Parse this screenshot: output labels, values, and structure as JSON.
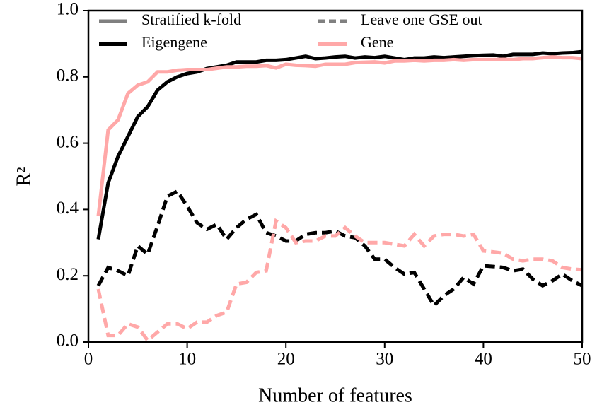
{
  "chart_data": {
    "type": "line",
    "xlabel": "Number of features",
    "ylabel": "R²",
    "x": [
      1,
      2,
      3,
      4,
      5,
      6,
      7,
      8,
      9,
      10,
      11,
      12,
      13,
      14,
      15,
      16,
      17,
      18,
      19,
      20,
      21,
      22,
      23,
      24,
      25,
      26,
      27,
      28,
      29,
      30,
      31,
      32,
      33,
      34,
      35,
      36,
      37,
      38,
      39,
      40,
      41,
      42,
      43,
      44,
      45,
      46,
      47,
      48,
      49,
      50
    ],
    "xlim": [
      0,
      50
    ],
    "xticks": [
      0,
      10,
      20,
      30,
      40,
      50
    ],
    "ylim": [
      0,
      1
    ],
    "yticks": [
      {
        "value": 0,
        "label": "0.0"
      },
      0.2,
      0.4,
      0.6,
      0.8,
      {
        "value": 1,
        "label": "1.0"
      }
    ],
    "grid": false,
    "legend": {
      "position": "top",
      "methods": [
        {
          "label": "Stratified k-fold",
          "linestyle": "solid",
          "color": "#808080"
        },
        {
          "label": "Leave one GSE out",
          "linestyle": "dashed",
          "color": "#808080"
        }
      ]
    },
    "series": [
      {
        "name": "Eigengene",
        "color": "#000000",
        "linestyle": "solid",
        "values": [
          0.31,
          0.48,
          0.56,
          0.62,
          0.68,
          0.71,
          0.76,
          0.785,
          0.8,
          0.81,
          0.815,
          0.825,
          0.83,
          0.835,
          0.845,
          0.845,
          0.845,
          0.85,
          0.85,
          0.852,
          0.857,
          0.862,
          0.855,
          0.857,
          0.86,
          0.862,
          0.857,
          0.86,
          0.858,
          0.862,
          0.857,
          0.852,
          0.857,
          0.857,
          0.86,
          0.858,
          0.86,
          0.862,
          0.864,
          0.865,
          0.866,
          0.862,
          0.868,
          0.868,
          0.868,
          0.872,
          0.87,
          0.872,
          0.873,
          0.876
        ]
      },
      {
        "name": "Gene",
        "color": "#ffa8a8",
        "linestyle": "solid",
        "values": [
          0.38,
          0.64,
          0.67,
          0.75,
          0.775,
          0.785,
          0.815,
          0.815,
          0.82,
          0.822,
          0.822,
          0.822,
          0.826,
          0.83,
          0.83,
          0.832,
          0.832,
          0.834,
          0.827,
          0.838,
          0.835,
          0.834,
          0.832,
          0.838,
          0.838,
          0.838,
          0.843,
          0.844,
          0.845,
          0.842,
          0.848,
          0.848,
          0.85,
          0.848,
          0.85,
          0.85,
          0.852,
          0.85,
          0.852,
          0.852,
          0.852,
          0.853,
          0.852,
          0.855,
          0.855,
          0.858,
          0.86,
          0.858,
          0.858,
          0.855
        ]
      },
      {
        "name": "Eigengene",
        "color": "#000000",
        "linestyle": "dashed",
        "values": [
          0.17,
          0.225,
          0.215,
          0.2,
          0.29,
          0.265,
          0.35,
          0.44,
          0.455,
          0.41,
          0.36,
          0.34,
          0.355,
          0.31,
          0.345,
          0.37,
          0.385,
          0.33,
          0.32,
          0.305,
          0.305,
          0.325,
          0.33,
          0.33,
          0.335,
          0.32,
          0.315,
          0.29,
          0.25,
          0.25,
          0.225,
          0.205,
          0.21,
          0.16,
          0.11,
          0.14,
          0.16,
          0.195,
          0.175,
          0.23,
          0.228,
          0.225,
          0.215,
          0.22,
          0.19,
          0.17,
          0.185,
          0.205,
          0.185,
          0.17
        ]
      },
      {
        "name": "Gene",
        "color": "#ffa8a8",
        "linestyle": "dashed",
        "values": [
          0.16,
          0.02,
          0.02,
          0.055,
          0.045,
          0.005,
          0.03,
          0.055,
          0.055,
          0.04,
          0.06,
          0.06,
          0.08,
          0.09,
          0.175,
          0.18,
          0.21,
          0.215,
          0.365,
          0.345,
          0.3,
          0.305,
          0.305,
          0.32,
          0.32,
          0.345,
          0.32,
          0.3,
          0.3,
          0.3,
          0.295,
          0.29,
          0.325,
          0.29,
          0.32,
          0.325,
          0.325,
          0.32,
          0.325,
          0.275,
          0.272,
          0.268,
          0.25,
          0.245,
          0.25,
          0.25,
          0.245,
          0.225,
          0.22,
          0.218
        ]
      }
    ]
  }
}
